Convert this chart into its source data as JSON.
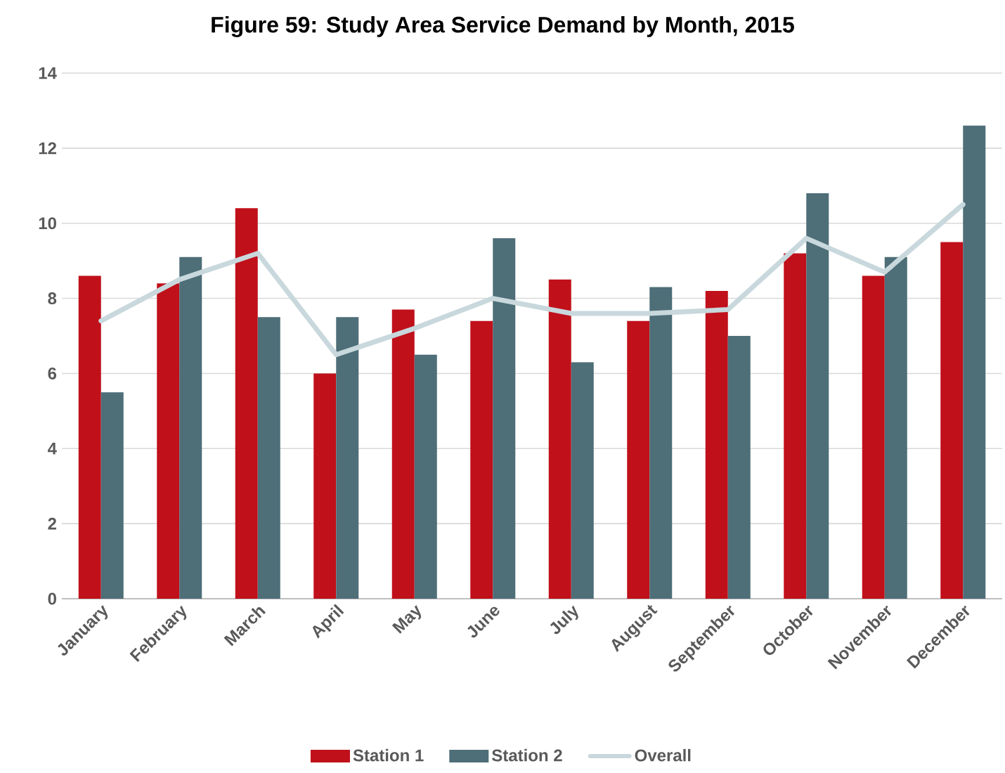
{
  "chart_data": {
    "type": "bar",
    "title": "Figure 59: Study Area Service Demand by Month, 2015",
    "categories": [
      "January",
      "February",
      "March",
      "April",
      "May",
      "June",
      "July",
      "August",
      "September",
      "October",
      "November",
      "December"
    ],
    "series": [
      {
        "name": "Station 1",
        "color": "#c0101a",
        "values": [
          8.6,
          8.4,
          10.4,
          6.0,
          7.7,
          7.4,
          8.5,
          7.4,
          8.2,
          9.2,
          8.6,
          9.5
        ]
      },
      {
        "name": "Station 2",
        "color": "#4e6e78",
        "values": [
          5.5,
          9.1,
          7.5,
          7.5,
          6.5,
          9.6,
          6.3,
          8.3,
          7.0,
          10.8,
          9.1,
          12.6
        ]
      },
      {
        "name": "Overall",
        "type": "line",
        "color": "#c8d8dc",
        "values": [
          7.4,
          8.5,
          9.2,
          6.5,
          7.2,
          8.0,
          7.6,
          7.6,
          7.7,
          9.6,
          8.7,
          10.5
        ]
      }
    ],
    "ylim": [
      0,
      14
    ],
    "yticks": [
      0,
      2,
      4,
      6,
      8,
      10,
      12,
      14
    ],
    "grid": "y",
    "legend": "bottom"
  }
}
